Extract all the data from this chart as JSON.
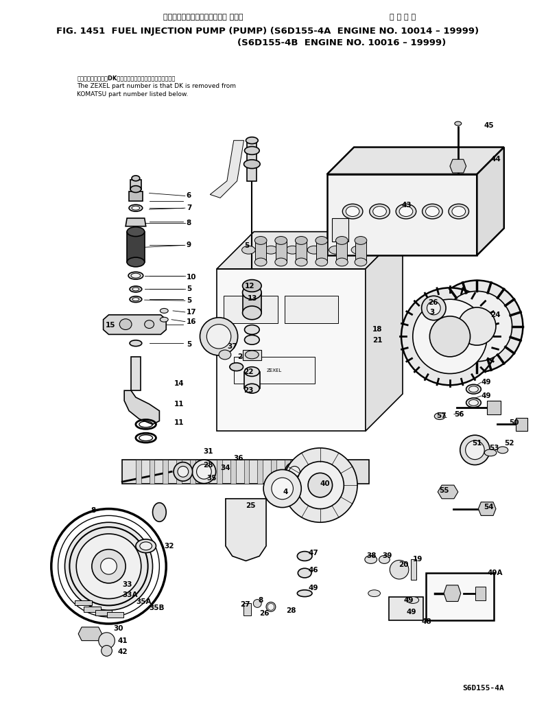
{
  "title_jp1": "フェルインジェクションポンプ ポンプ",
  "title_jp2": "通 用 号 機",
  "title_en1": "FIG. 1451  FUEL INJECTION PUMP (PUMP) (S6D155-4A  ENGINE NO. 10014 – 19999)",
  "title_en2": "(S6D155-4B  ENGINE NO. 10016 – 19999)",
  "note_jp": "部品のメーカー番号DKを除いたものがゼクセルの品番です。",
  "note_en1": "The ZEXEL part number is that DK is removed from",
  "note_en2": "KOMATSU part number listed below.",
  "footer": "S6D155-4A",
  "bg_color": "#ffffff"
}
